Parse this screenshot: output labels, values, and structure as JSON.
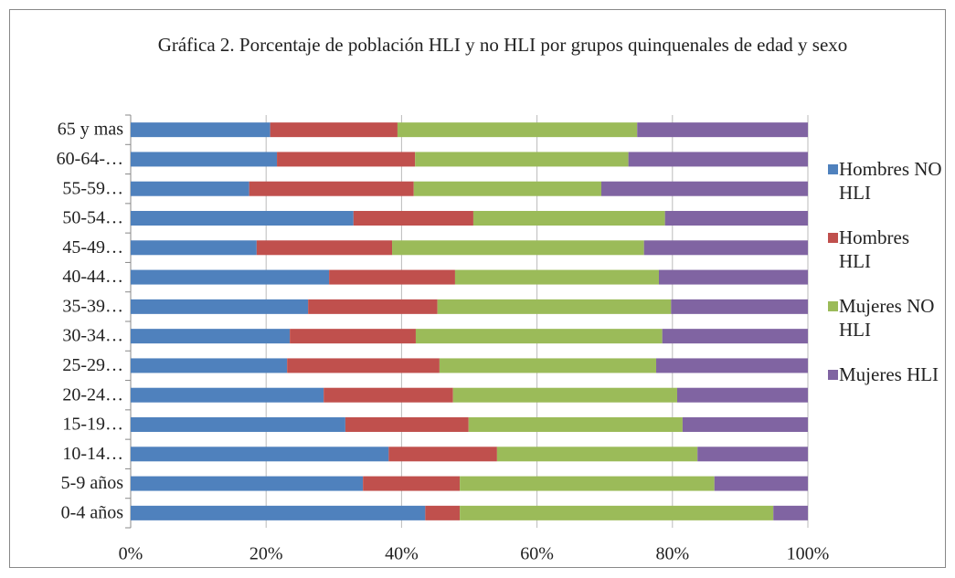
{
  "chart_data": {
    "type": "stacked-bar-horizontal",
    "title": "Gráfica 2. Porcentaje de población HLI y no HLI  por grupos quinquenales de edad y sexo",
    "categories": [
      "65 y mas",
      "60-64-…",
      "55-59…",
      "50-54…",
      "45-49…",
      "40-44…",
      "35-39…",
      "30-34…",
      "25-29…",
      "20-24…",
      "15-19…",
      "10-14…",
      "5-9 años",
      "0-4 años"
    ],
    "series": [
      {
        "name": "Hombres NO HLI",
        "color": "#4f81bd",
        "values": [
          20.6,
          21.6,
          17.5,
          32.9,
          18.6,
          29.3,
          26.2,
          23.5,
          23.1,
          28.5,
          31.7,
          38.1,
          34.3,
          43.5
        ]
      },
      {
        "name": "Hombres HLI",
        "color": "#c0504d",
        "values": [
          18.8,
          20.4,
          24.3,
          17.7,
          20.0,
          18.6,
          19.1,
          18.6,
          22.5,
          19.1,
          18.2,
          16.0,
          14.3,
          5.1
        ]
      },
      {
        "name": "Mujeres NO HLI",
        "color": "#9bbb59",
        "values": [
          35.4,
          31.5,
          27.7,
          28.3,
          37.2,
          30.1,
          34.5,
          36.4,
          32.0,
          33.1,
          31.6,
          29.6,
          37.6,
          46.3
        ]
      },
      {
        "name": "Mujeres HLI",
        "color": "#8064a2",
        "values": [
          25.2,
          26.5,
          30.5,
          21.1,
          24.2,
          22.0,
          20.2,
          21.5,
          22.4,
          19.3,
          18.5,
          16.3,
          13.8,
          5.1
        ]
      }
    ],
    "xlim": [
      0,
      100
    ],
    "xticks": [
      {
        "value": 0,
        "label": "0%"
      },
      {
        "value": 20,
        "label": "20%"
      },
      {
        "value": 40,
        "label": "40%"
      },
      {
        "value": 60,
        "label": "60%"
      },
      {
        "value": 80,
        "label": "80%"
      },
      {
        "value": 100,
        "label": "100%"
      }
    ],
    "grid": true,
    "legend": "right"
  }
}
